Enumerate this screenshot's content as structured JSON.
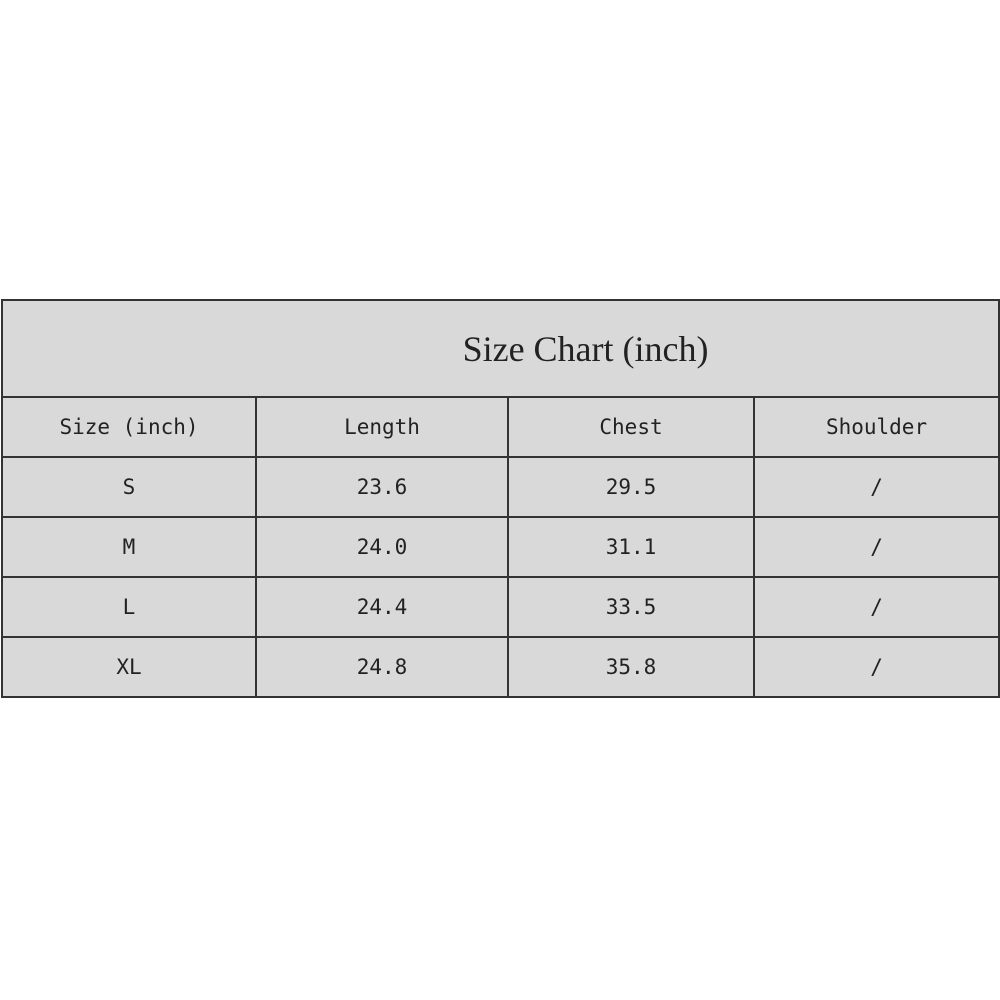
{
  "title": "Size Chart (inch)",
  "headers": [
    "Size (inch)",
    "Length",
    "Chest",
    "Shoulder"
  ],
  "rows": [
    [
      "S",
      "23.6",
      "29.5",
      "/"
    ],
    [
      "M",
      "24.0",
      "31.1",
      "/"
    ],
    [
      "L",
      "24.4",
      "33.5",
      "/"
    ],
    [
      "XL",
      "24.8",
      "35.8",
      "/"
    ]
  ],
  "colors": {
    "cell_background": "#d9d9d9",
    "border": "#333333"
  }
}
